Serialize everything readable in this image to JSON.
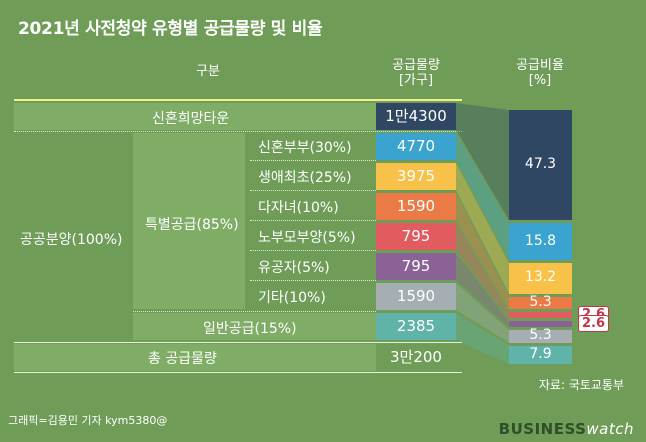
{
  "title": "2021년 사전청약 유형별 공급물량 및 비율",
  "headers": {
    "category": "구분",
    "supply": "공급물량",
    "supply_unit": "[가구]",
    "ratio": "공급비율",
    "ratio_unit": "[%]"
  },
  "rows": {
    "newlywed_town": {
      "label": "신혼희망타운",
      "value": "1만4300",
      "color": "#2f4762"
    },
    "public": {
      "label": "공공분양(100%)"
    },
    "special": {
      "label": "특별공급(85%)"
    },
    "special_newlywed": {
      "label": "신혼부부(30%)",
      "value": "4770",
      "color": "#3aa3cf"
    },
    "special_first": {
      "label": "생애최초(25%)",
      "value": "3975",
      "color": "#f7c14a"
    },
    "special_multichild": {
      "label": "다자녀(10%)",
      "value": "1590",
      "color": "#ec7a46"
    },
    "special_parents": {
      "label": "노부모부양(5%)",
      "value": "795",
      "color": "#e25b5f"
    },
    "special_merit": {
      "label": "유공자(5%)",
      "value": "795",
      "color": "#8b6296"
    },
    "special_other": {
      "label": "기타(10%)",
      "value": "1590",
      "color": "#a4aeb3"
    },
    "general": {
      "label": "일반공급(15%)",
      "value": "2385",
      "color": "#5fb3a8"
    },
    "total": {
      "label": "총 공급물량",
      "value": "3만200"
    }
  },
  "chart_data": {
    "type": "bar",
    "categories": [
      "신혼희망타운",
      "신혼부부",
      "생애최초",
      "다자녀",
      "노부모부양",
      "유공자",
      "기타",
      "일반공급"
    ],
    "values": [
      47.3,
      15.8,
      13.2,
      5.3,
      2.6,
      2.6,
      5.3,
      7.9
    ],
    "labels": [
      "47.3",
      "15.8",
      "13.2",
      "5.3",
      "2.6",
      "2.6",
      "5.3",
      "7.9"
    ],
    "colors": [
      "#2f4762",
      "#3aa3cf",
      "#f7c14a",
      "#ec7a46",
      "#e25b5f",
      "#8b6296",
      "#a4aeb3",
      "#5fb3a8"
    ],
    "ylabel": "공급비율 [%]",
    "stacked": true
  },
  "source": "자료: 국토교통부",
  "credit": "그래픽=김용민 기자 kym5380@",
  "brand": {
    "main": "BUSINESS",
    "accent": "watch"
  }
}
